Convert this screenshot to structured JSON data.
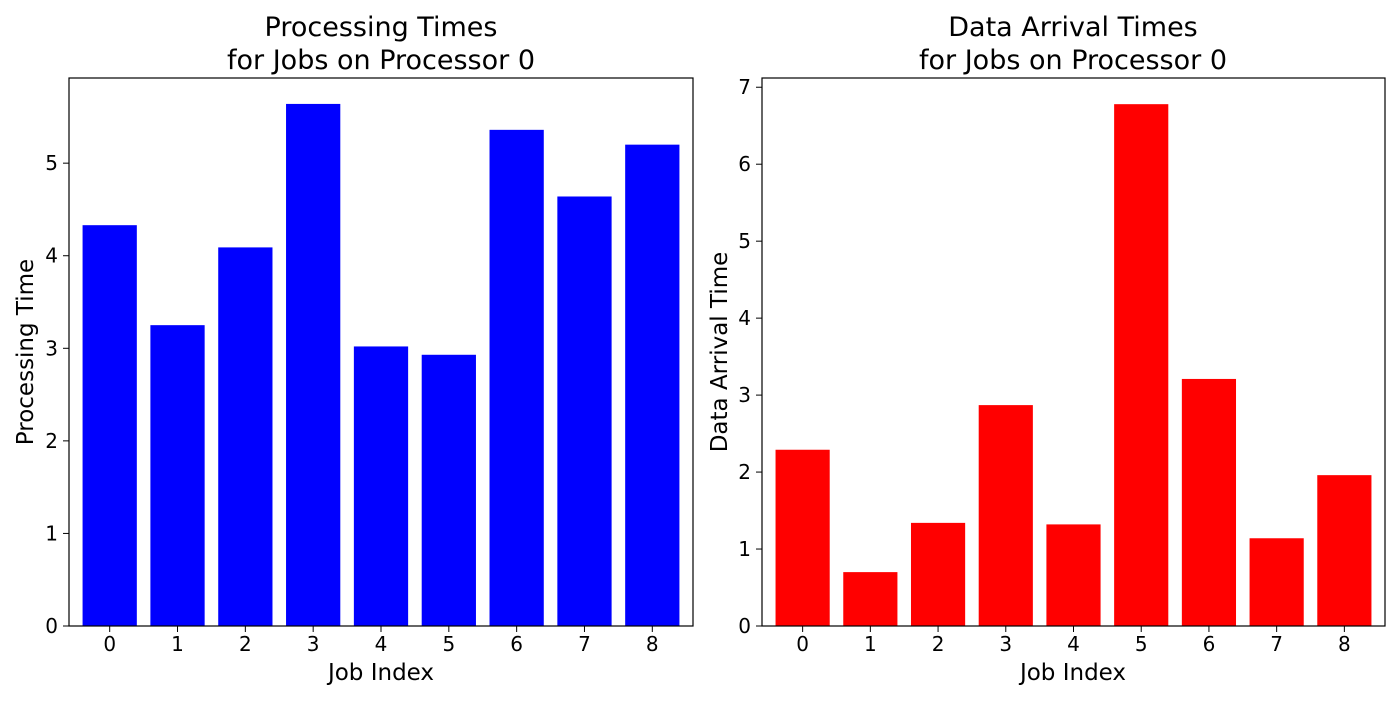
{
  "chart_data": [
    {
      "type": "bar",
      "title_line1": "Processing Times",
      "title_line2": "for Jobs on Processor 0",
      "xlabel": "Job Index",
      "ylabel": "Processing Time",
      "categories": [
        "0",
        "1",
        "2",
        "3",
        "4",
        "5",
        "6",
        "7",
        "8"
      ],
      "values": [
        4.33,
        3.25,
        4.09,
        5.64,
        3.02,
        2.93,
        5.36,
        4.64,
        5.2
      ],
      "yticks": [
        0,
        1,
        2,
        3,
        4,
        5
      ],
      "ylim": [
        0,
        5.92
      ],
      "color": "#0000ff",
      "grid": false,
      "legend": "none"
    },
    {
      "type": "bar",
      "title_line1": "Data Arrival Times",
      "title_line2": "for Jobs on Processor 0",
      "xlabel": "Job Index",
      "ylabel": "Data Arrival Time",
      "categories": [
        "0",
        "1",
        "2",
        "3",
        "4",
        "5",
        "6",
        "7",
        "8"
      ],
      "values": [
        2.29,
        0.7,
        1.34,
        2.87,
        1.32,
        6.78,
        3.21,
        1.14,
        1.96
      ],
      "yticks": [
        0,
        1,
        2,
        3,
        4,
        5,
        6,
        7
      ],
      "ylim": [
        0,
        7.12
      ],
      "color": "#ff0000",
      "grid": false,
      "legend": "none"
    }
  ]
}
